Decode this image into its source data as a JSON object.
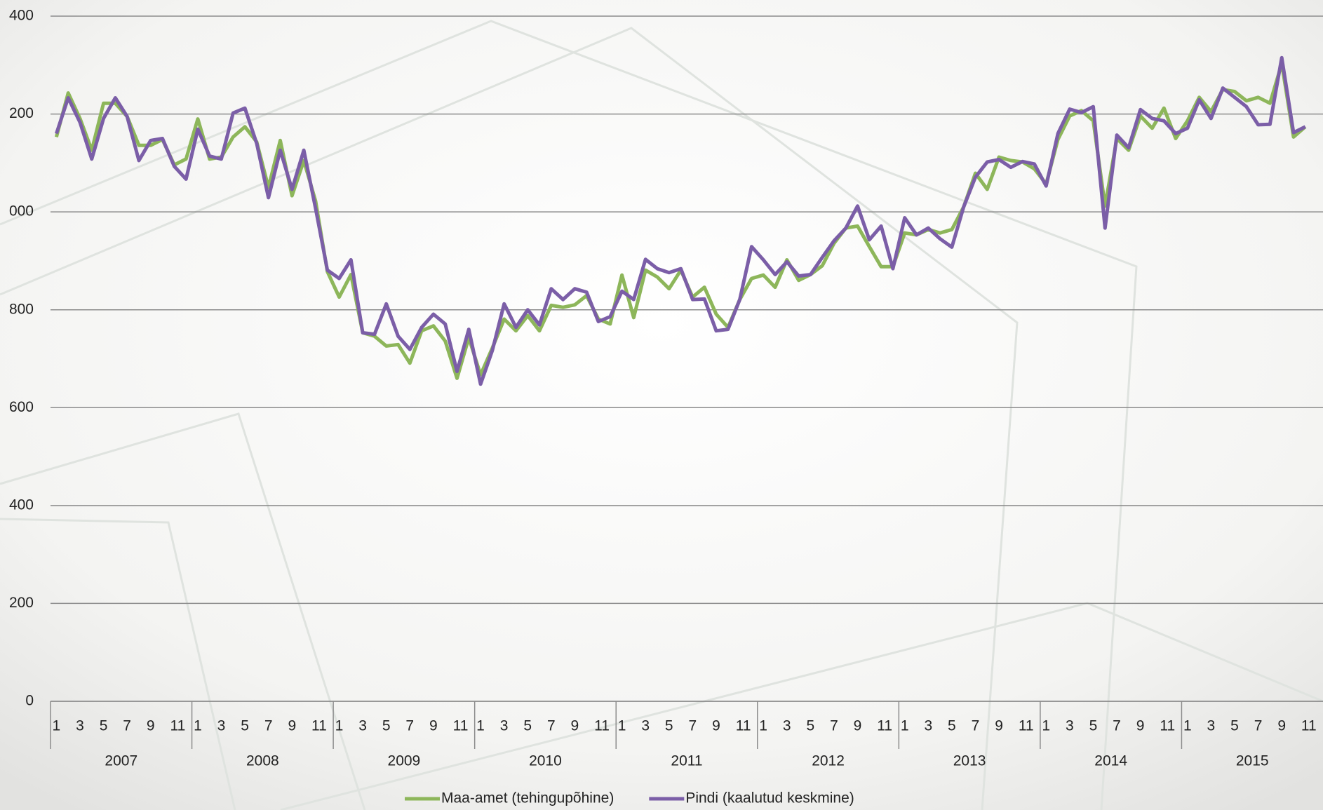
{
  "chart_data": {
    "type": "line",
    "categories": [
      "1",
      null,
      "3",
      null,
      "5",
      null,
      "7",
      null,
      "9",
      null,
      "11",
      null,
      "1",
      null,
      "3",
      null,
      "5",
      null,
      "7",
      null,
      "9",
      null,
      "11",
      null,
      "1",
      null,
      "3",
      null,
      "5",
      null,
      "7",
      null,
      "9",
      null,
      "11",
      null,
      "1",
      null,
      "3",
      null,
      "5",
      null,
      "7",
      null,
      "9",
      null,
      "11",
      null,
      "1",
      null,
      "3",
      null,
      "5",
      null,
      "7",
      null,
      "9",
      null,
      "11",
      null,
      "1",
      null,
      "3",
      null,
      "5",
      null,
      "7",
      null,
      "9",
      null,
      "11",
      null,
      "1",
      null,
      "3",
      null,
      "5",
      null,
      "7",
      null,
      "9",
      null,
      "11",
      null,
      "1",
      null,
      "3",
      null,
      "5",
      null,
      "7",
      null,
      "9",
      null,
      "11",
      null,
      "1",
      null,
      "3",
      null,
      "5",
      null,
      "7",
      null,
      "9",
      null,
      "11",
      null
    ],
    "x_groups": [
      "2007",
      "2008",
      "2009",
      "2010",
      "2011",
      "2012",
      "2013",
      "2014",
      "2015"
    ],
    "series": [
      {
        "name": "Maa-amet (tehingupõhine)",
        "color": "#8db65a",
        "values": [
          1153,
          1243,
          1191,
          1126,
          1222,
          1222,
          1195,
          1136,
          1136,
          1148,
          1096,
          1108,
          1190,
          1108,
          1112,
          1153,
          1174,
          1143,
          1050,
          1146,
          1033,
          1105,
          1022,
          878,
          826,
          872,
          753,
          746,
          726,
          729,
          691,
          757,
          767,
          736,
          660,
          743,
          667,
          722,
          781,
          757,
          788,
          757,
          809,
          805,
          810,
          829,
          781,
          771,
          871,
          784,
          881,
          867,
          843,
          881,
          826,
          846,
          791,
          764,
          821,
          864,
          871,
          846,
          902,
          860,
          872,
          890,
          936,
          967,
          971,
          929,
          888,
          888,
          957,
          953,
          964,
          957,
          964,
          1010,
          1079,
          1046,
          1112,
          1105,
          1102,
          1088,
          1057,
          1148,
          1196,
          1207,
          1186,
          1012,
          1150,
          1126,
          1196,
          1171,
          1212,
          1150,
          1186,
          1234,
          1205,
          1250,
          1246,
          1227,
          1234,
          1222,
          1303,
          1153,
          1174,
          null
        ]
      },
      {
        "name": "Pindi (kaalutud keskmine)",
        "color": "#7b5ea7",
        "values": [
          1160,
          1233,
          1183,
          1108,
          1191,
          1233,
          1195,
          1105,
          1146,
          1150,
          1093,
          1067,
          1169,
          1114,
          1108,
          1202,
          1212,
          1140,
          1029,
          1126,
          1046,
          1126,
          1007,
          881,
          864,
          902,
          753,
          750,
          812,
          746,
          719,
          764,
          791,
          771,
          674,
          760,
          648,
          717,
          812,
          764,
          800,
          769,
          843,
          821,
          843,
          836,
          776,
          786,
          838,
          821,
          903,
          884,
          876,
          884,
          821,
          822,
          757,
          760,
          821,
          929,
          902,
          872,
          898,
          869,
          872,
          907,
          941,
          967,
          1012,
          943,
          971,
          884,
          988,
          953,
          967,
          945,
          928,
          1010,
          1071,
          1102,
          1107,
          1091,
          1103,
          1098,
          1053,
          1160,
          1210,
          1203,
          1215,
          967,
          1157,
          1131,
          1209,
          1191,
          1186,
          1160,
          1171,
          1229,
          1191,
          1253,
          1234,
          1215,
          1178,
          1179,
          1315,
          1162,
          1174,
          null
        ]
      }
    ],
    "ylim": [
      0,
      1400
    ],
    "yticks": [
      0,
      {
        "value": 200,
        "label": "200"
      },
      {
        "value": 400,
        "label": "400"
      },
      {
        "value": 600,
        "label": "600"
      },
      {
        "value": 800,
        "label": "800"
      },
      {
        "value": 1000,
        "label": "000"
      },
      {
        "value": 1200,
        "label": "200"
      },
      {
        "value": 1400,
        "label": "400"
      }
    ],
    "grid": true
  }
}
